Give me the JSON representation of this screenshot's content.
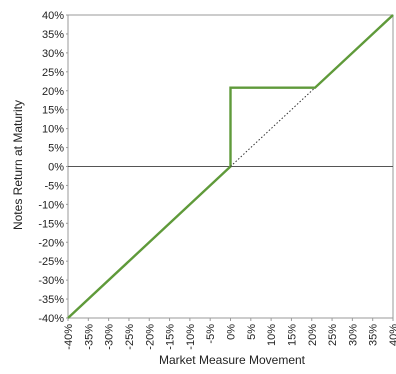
{
  "chart_data": {
    "type": "line",
    "xlabel": "Market Measure Movement",
    "ylabel": "Notes Return at Maturity",
    "xlim": [
      -40,
      40
    ],
    "ylim": [
      -40,
      40
    ],
    "x_ticks": [
      -40,
      -35,
      -30,
      -25,
      -20,
      -15,
      -10,
      -5,
      0,
      5,
      10,
      15,
      20,
      25,
      30,
      35,
      40
    ],
    "y_ticks": [
      40,
      35,
      30,
      25,
      20,
      15,
      10,
      5,
      0,
      -5,
      -10,
      -15,
      -20,
      -25,
      -30,
      -35,
      -40
    ],
    "x_tick_labels": [
      "-40%",
      "-35%",
      "-30%",
      "-25%",
      "-20%",
      "-15%",
      "-10%",
      "-5%",
      "0%",
      "5%",
      "10%",
      "15%",
      "20%",
      "25%",
      "30%",
      "35%",
      "40%"
    ],
    "y_tick_labels": [
      "40%",
      "35%",
      "30%",
      "25%",
      "20%",
      "15%",
      "10%",
      "5%",
      "0%",
      "-5%",
      "-10%",
      "-15%",
      "-20%",
      "-25%",
      "-30%",
      "-35%",
      "-40%"
    ],
    "grid": false,
    "series": [
      {
        "style": "solid",
        "color": "#5f9a3a",
        "points": [
          [
            -40,
            -40
          ],
          [
            0,
            0
          ],
          [
            0,
            20.8
          ],
          [
            20.8,
            20.8
          ],
          [
            40,
            40
          ]
        ]
      },
      {
        "style": "dotted",
        "color": "#333333",
        "points": [
          [
            0,
            0
          ],
          [
            20.8,
            20.8
          ]
        ]
      }
    ],
    "reference_lines": [
      {
        "axis": "y",
        "value": 0,
        "color": "#555555"
      }
    ]
  }
}
